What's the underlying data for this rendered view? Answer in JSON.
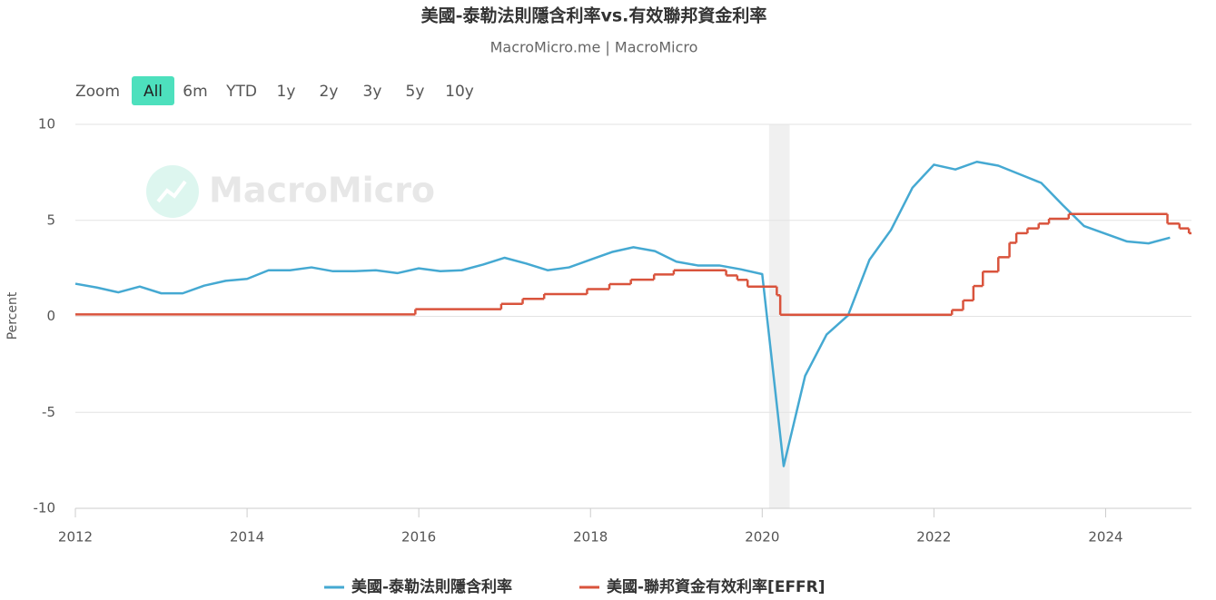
{
  "chart_data": {
    "type": "line",
    "title": "美國-泰勒法則隱含利率vs.有效聯邦資金利率",
    "subtitle": "MacroMicro.me | MacroMicro",
    "watermark": "MacroMicro",
    "range_selector": {
      "label": "Zoom",
      "buttons": [
        "All",
        "6m",
        "YTD",
        "1y",
        "2y",
        "3y",
        "5y",
        "10y"
      ],
      "selected": 0
    },
    "y_label": "Percent",
    "xlim": [
      2012,
      2025
    ],
    "xticks": [
      2012,
      2014,
      2016,
      2018,
      2020,
      2022,
      2024
    ],
    "ylim": [
      -10,
      10
    ],
    "yticks": [
      -10,
      -5,
      0,
      5,
      10
    ],
    "grid": true,
    "legend": "bottom",
    "shaded_regions": [
      {
        "from": 2020.08,
        "to": 2020.32,
        "color": "#f0f0f0"
      }
    ],
    "series": [
      {
        "name": "美國-泰勒法則隱含利率",
        "color": "#45a9d2",
        "step": false,
        "x": [
          2012,
          2012.25,
          2012.5,
          2012.75,
          2013,
          2013.25,
          2013.5,
          2013.75,
          2014,
          2014.25,
          2014.5,
          2014.75,
          2015,
          2015.25,
          2015.5,
          2015.75,
          2016,
          2016.25,
          2016.5,
          2016.75,
          2017,
          2017.25,
          2017.5,
          2017.75,
          2018,
          2018.25,
          2018.5,
          2018.75,
          2019,
          2019.25,
          2019.5,
          2019.75,
          2020,
          2020.25,
          2020.5,
          2020.75,
          2021,
          2021.25,
          2021.5,
          2021.75,
          2022,
          2022.25,
          2022.5,
          2022.75,
          2023,
          2023.25,
          2023.5,
          2023.75,
          2024,
          2024.25,
          2024.5,
          2024.75
        ],
        "values": [
          1.7,
          1.5,
          1.25,
          1.55,
          1.2,
          1.2,
          1.6,
          1.85,
          1.95,
          2.4,
          2.4,
          2.55,
          2.35,
          2.35,
          2.4,
          2.25,
          2.5,
          2.35,
          2.4,
          2.7,
          3.05,
          2.75,
          2.4,
          2.55,
          2.95,
          3.35,
          3.6,
          3.4,
          2.85,
          2.65,
          2.65,
          2.45,
          2.2,
          -7.8,
          -3.1,
          -0.95,
          0.05,
          2.95,
          4.5,
          6.7,
          7.9,
          7.65,
          8.05,
          7.85,
          7.4,
          6.95,
          5.8,
          4.7,
          4.3,
          3.9,
          3.8,
          4.1
        ]
      },
      {
        "name": "美國-聯邦資金有效利率[EFFR]",
        "color": "#d9533c",
        "step": true,
        "x": [
          2012,
          2015.96,
          2016.96,
          2017.21,
          2017.46,
          2017.96,
          2018.22,
          2018.47,
          2018.74,
          2018.97,
          2019.58,
          2019.71,
          2019.83,
          2020.17,
          2020.21,
          2022.21,
          2022.34,
          2022.46,
          2022.57,
          2022.75,
          2022.88,
          2022.96,
          2023.09,
          2023.22,
          2023.34,
          2023.57,
          2024.72,
          2024.86,
          2024.97
        ],
        "values": [
          0.1,
          0.37,
          0.65,
          0.91,
          1.16,
          1.42,
          1.68,
          1.91,
          2.18,
          2.4,
          2.13,
          1.9,
          1.55,
          1.1,
          0.08,
          0.33,
          0.83,
          1.58,
          2.33,
          3.08,
          3.83,
          4.33,
          4.58,
          4.83,
          5.08,
          5.33,
          4.83,
          4.58,
          4.33
        ]
      }
    ]
  }
}
